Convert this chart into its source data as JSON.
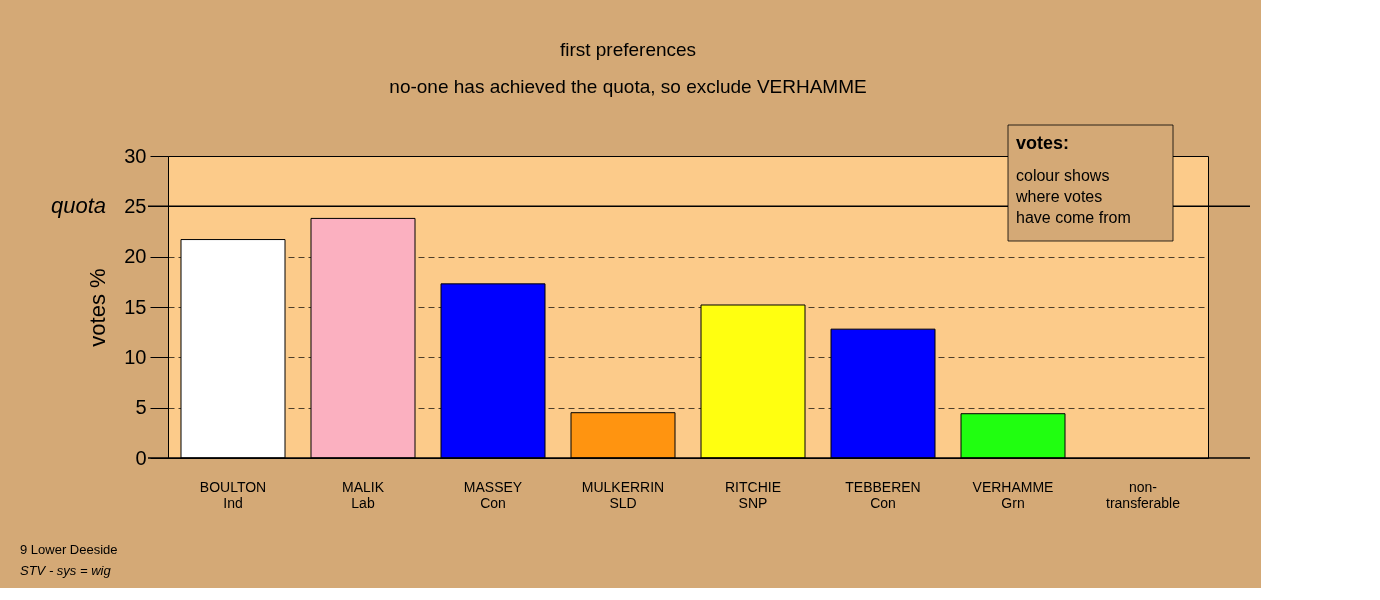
{
  "chart_data": {
    "type": "bar",
    "title": "first preferences",
    "subtitle": "no-one has achieved the quota, so exclude VERHAMME",
    "ylabel": "votes %",
    "categories": [
      "BOULTON\nInd",
      "MALIK\nLab",
      "MASSEY\nCon",
      "MULKERRIN\nSLD",
      "RITCHIE\nSNP",
      "TEBBEREN\nCon",
      "VERHAMME\nGrn",
      "non-\ntransferable"
    ],
    "values": [
      21.7,
      23.8,
      17.3,
      4.5,
      15.2,
      12.8,
      4.4,
      null
    ],
    "colors": [
      "#ffffff",
      "#fbb0c0",
      "#0000ff",
      "#ff9410",
      "#ffff10",
      "#0000ff",
      "#20ff10",
      "#cccccc"
    ],
    "ylim": [
      0,
      30
    ],
    "yticks": [
      0,
      5,
      10,
      15,
      20,
      25,
      30
    ],
    "grid": "y",
    "ref_lines": [
      {
        "axis": "y",
        "value": 25,
        "label": "quota",
        "color": "#000000",
        "line_style": "solid"
      }
    ],
    "annotations": [
      "votes:",
      "colour shows\nwhere votes\nhave come from",
      "9 Lower Deeside",
      "STV - sys = wig"
    ]
  }
}
